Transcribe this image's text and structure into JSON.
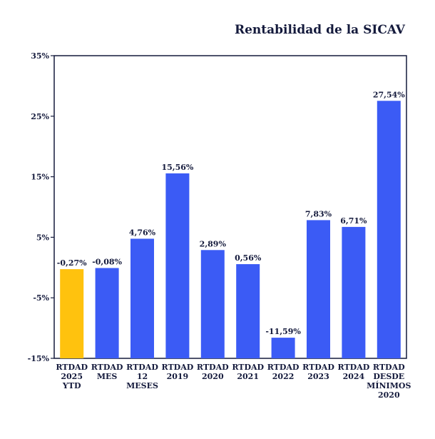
{
  "chart_data": {
    "type": "bar",
    "title": "Rentabilidad de la SICAV",
    "xlabel": "",
    "ylabel": "",
    "ylim": [
      -15,
      35
    ],
    "yticks": [
      "35%",
      "25%",
      "15%",
      "5%",
      "-5%",
      "-15%"
    ],
    "ytick_values": [
      35,
      25,
      15,
      5,
      -5,
      -15
    ],
    "grid": false,
    "legend": "none",
    "colors": {
      "highlight": "#ffc20e",
      "default": "#3b5bf5",
      "text": "#141a3c"
    },
    "categories": [
      [
        "RTDAD",
        "2025",
        "YTD"
      ],
      [
        "RTDAD",
        "MES"
      ],
      [
        "RTDAD",
        "12",
        "MESES"
      ],
      [
        "RTDAD",
        "2019"
      ],
      [
        "RTDAD",
        "2020"
      ],
      [
        "RTDAD",
        "2021"
      ],
      [
        "RTDAD",
        "2022"
      ],
      [
        "RTDAD",
        "2023"
      ],
      [
        "RTDAD",
        "2024"
      ],
      [
        "RTDAD",
        "DESDE",
        "MÍNIMOS",
        "2020"
      ]
    ],
    "values": [
      -0.27,
      -0.08,
      4.76,
      15.56,
      2.89,
      0.56,
      -11.59,
      7.83,
      6.71,
      27.54
    ],
    "labels": [
      "-0,27%",
      "-0,08%",
      "4,76%",
      "15,56%",
      "2,89%",
      "0,56%",
      "-11,59%",
      "7,83%",
      "6,71%",
      "27,54%"
    ],
    "highlight_index": 0
  }
}
